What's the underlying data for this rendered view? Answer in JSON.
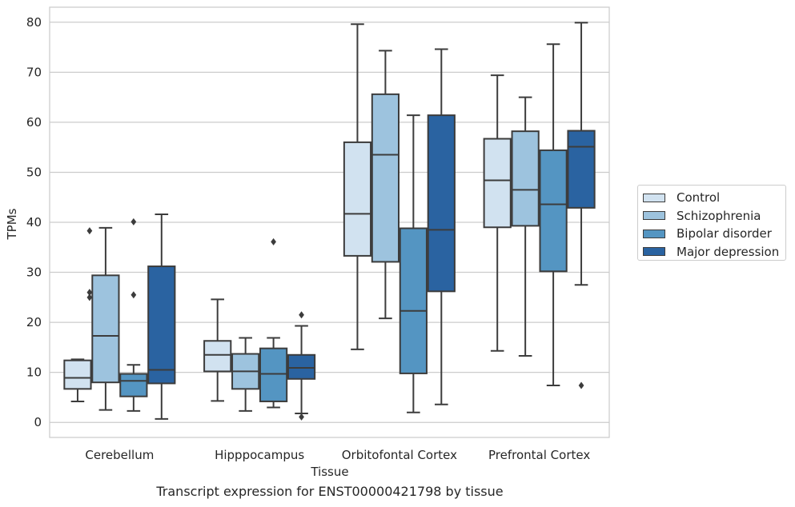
{
  "caption": "Transcript expression for ENST00000421798 by tissue",
  "chart_data": {
    "type": "box",
    "xlabel": "Tissue",
    "ylabel": "TPMs",
    "ylim": [
      -3,
      83
    ],
    "yticks": [
      0,
      10,
      20,
      30,
      40,
      50,
      60,
      70,
      80
    ],
    "grid": "horizontal",
    "legend_position": "right",
    "categories": [
      "Cerebellum",
      "Hipppocampus",
      "Orbitofontal Cortex",
      "Prefrontal Cortex"
    ],
    "series": [
      {
        "name": "Control",
        "color": "#d1e2f0",
        "boxes": [
          {
            "whisker_low": 4.2,
            "q1": 6.7,
            "median": 8.9,
            "q3": 12.4,
            "whisker_high": 12.6,
            "outliers": []
          },
          {
            "whisker_low": 4.3,
            "q1": 10.2,
            "median": 13.5,
            "q3": 16.3,
            "whisker_high": 24.6,
            "outliers": []
          },
          {
            "whisker_low": 14.6,
            "q1": 33.3,
            "median": 41.7,
            "q3": 56.0,
            "whisker_high": 79.6,
            "outliers": []
          },
          {
            "whisker_low": 14.3,
            "q1": 39.0,
            "median": 48.4,
            "q3": 56.7,
            "whisker_high": 69.4,
            "outliers": []
          }
        ]
      },
      {
        "name": "Schizophrenia",
        "color": "#9dc3de",
        "boxes": [
          {
            "whisker_low": 2.5,
            "q1": 8.0,
            "median": 17.3,
            "q3": 29.4,
            "whisker_high": 38.9,
            "outliers": []
          },
          {
            "whisker_low": 2.3,
            "q1": 6.7,
            "median": 10.2,
            "q3": 13.7,
            "whisker_high": 16.9,
            "outliers": []
          },
          {
            "whisker_low": 20.8,
            "q1": 32.1,
            "median": 53.5,
            "q3": 65.6,
            "whisker_high": 74.3,
            "outliers": []
          },
          {
            "whisker_low": 13.3,
            "q1": 39.3,
            "median": 46.5,
            "q3": 58.2,
            "whisker_high": 65.0,
            "outliers": []
          }
        ]
      },
      {
        "name": "Bipolar disorder",
        "color": "#5495c2",
        "boxes": [
          {
            "whisker_low": 2.3,
            "q1": 5.2,
            "median": 8.3,
            "q3": 9.7,
            "whisker_high": 11.5,
            "outliers": [
              40.1,
              25.5
            ]
          },
          {
            "whisker_low": 3.0,
            "q1": 4.2,
            "median": 9.7,
            "q3": 14.8,
            "whisker_high": 16.9,
            "outliers": [
              36.1
            ]
          },
          {
            "whisker_low": 2.0,
            "q1": 9.8,
            "median": 22.3,
            "q3": 38.8,
            "whisker_high": 61.4,
            "outliers": []
          },
          {
            "whisker_low": 7.4,
            "q1": 30.2,
            "median": 43.6,
            "q3": 54.4,
            "whisker_high": 75.6,
            "outliers": []
          }
        ]
      },
      {
        "name": "Major depression",
        "color": "#2a63a1",
        "boxes": [
          {
            "whisker_low": 0.7,
            "q1": 7.8,
            "median": 10.5,
            "q3": 31.2,
            "whisker_high": 41.6,
            "outliers": []
          },
          {
            "whisker_low": 1.8,
            "q1": 8.7,
            "median": 10.9,
            "q3": 13.5,
            "whisker_high": 19.3,
            "outliers": [
              21.5,
              1.1
            ]
          },
          {
            "whisker_low": 3.6,
            "q1": 26.2,
            "median": 38.5,
            "q3": 61.4,
            "whisker_high": 74.6,
            "outliers": []
          },
          {
            "whisker_low": 27.5,
            "q1": 42.9,
            "median": 55.1,
            "q3": 58.3,
            "whisker_high": 79.9,
            "outliers": [
              7.4
            ]
          }
        ]
      }
    ],
    "extra_outliers": [
      {
        "category": 0,
        "series": 0,
        "values": [
          38.3,
          26.0,
          25.0
        ]
      }
    ]
  }
}
